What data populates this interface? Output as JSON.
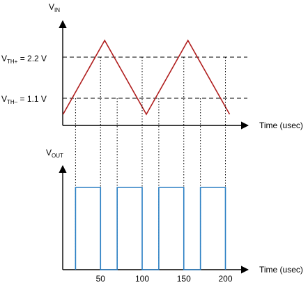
{
  "vin_axis": {
    "label_main": "V",
    "label_sub": "IN",
    "x_label": "Time (usec)"
  },
  "vout_axis": {
    "label_main": "V",
    "label_sub": "OUT",
    "x_label": "Time (usec)"
  },
  "thresholds": {
    "upper": {
      "prefix": "V",
      "sub": "TH+",
      "value_text": " = 2.2 V",
      "value": 2.2
    },
    "lower": {
      "prefix": "V",
      "sub": "TH–",
      "value_text": " = 1.1 V",
      "value": 1.1
    }
  },
  "x_ticks": [
    "50",
    "100",
    "150",
    "200"
  ],
  "colors": {
    "input_wave": "#b01e1e",
    "output_wave": "#2a7fc4",
    "axis": "#000000"
  },
  "waveforms": {
    "vin_triangle": {
      "points_time": [
        5,
        55,
        105,
        155,
        205
      ],
      "points_level": [
        "low",
        "peak",
        "low",
        "peak",
        "low"
      ]
    },
    "vout_pulses": {
      "high_intervals": [
        [
          20,
          50
        ],
        [
          70,
          100
        ],
        [
          120,
          150
        ],
        [
          170,
          200
        ]
      ]
    }
  }
}
